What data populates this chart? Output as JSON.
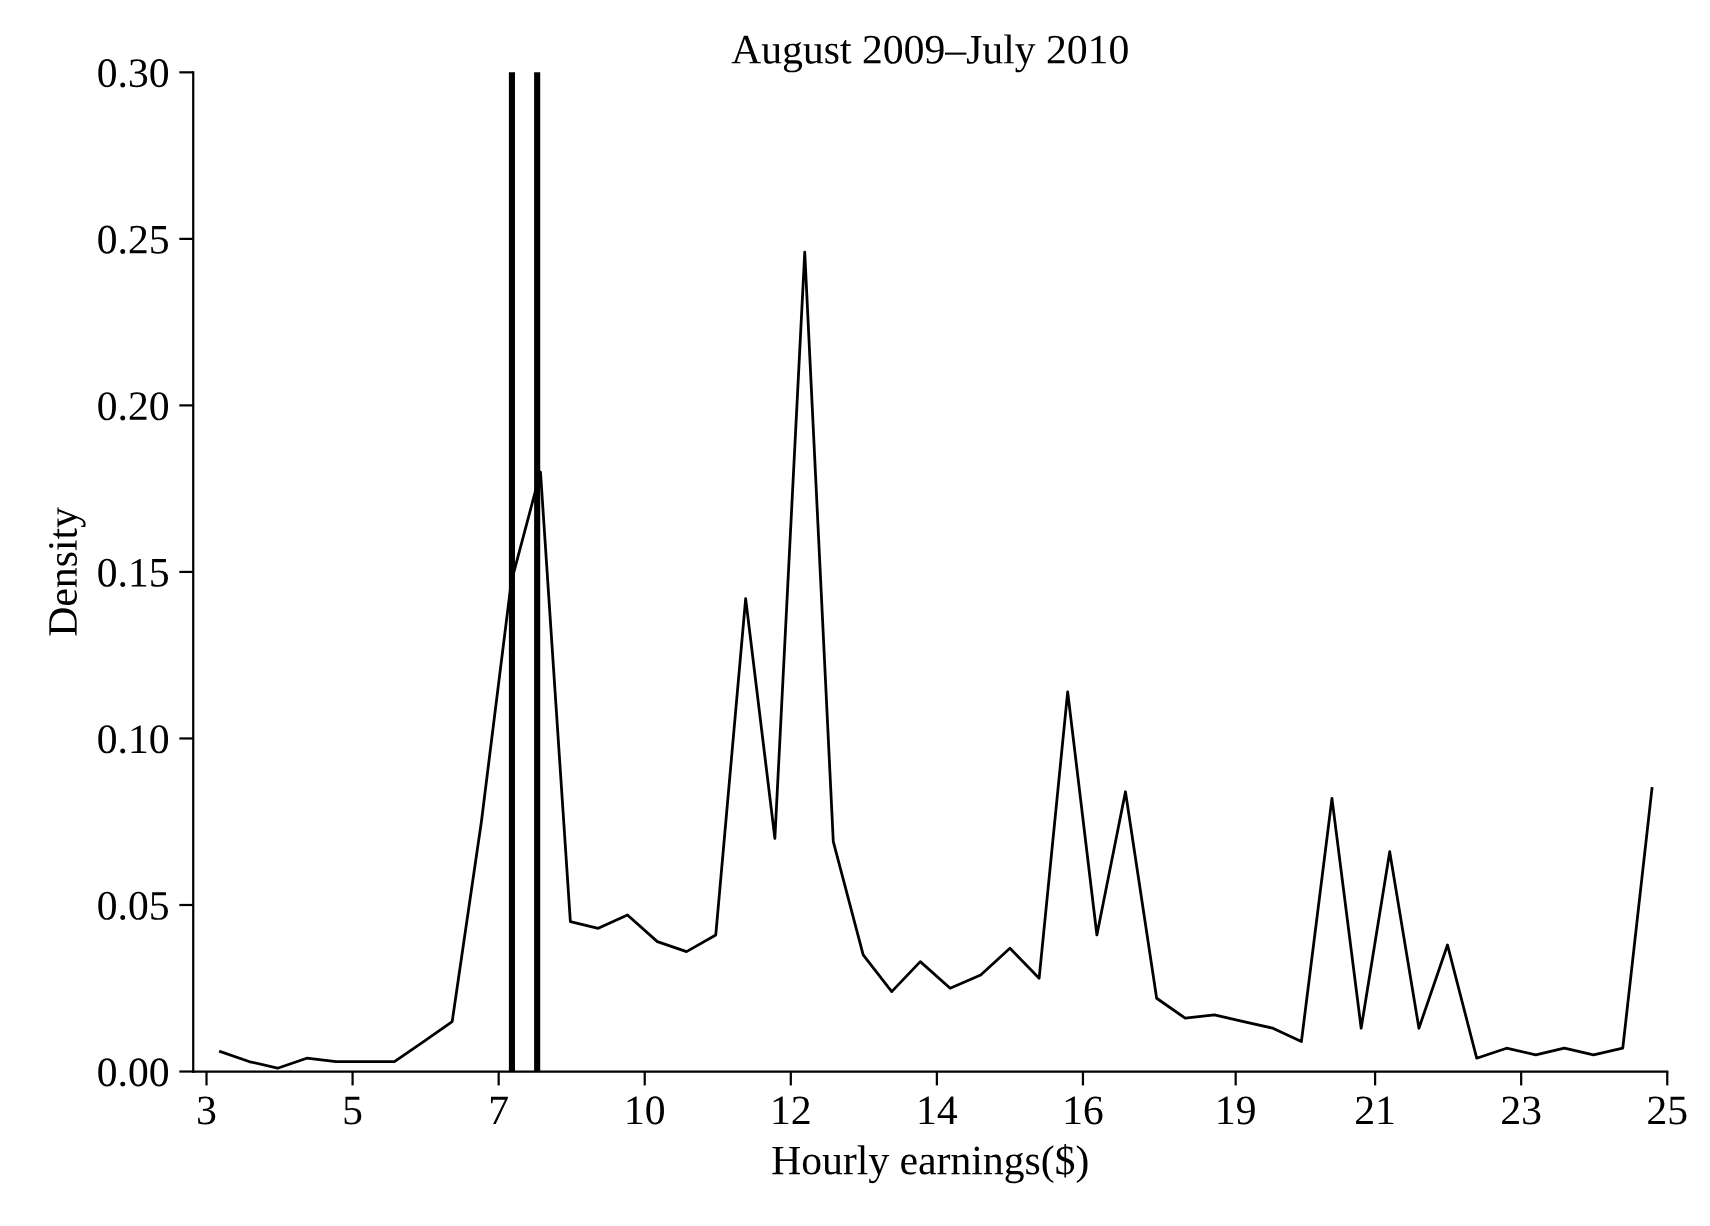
{
  "chart_data": {
    "type": "line",
    "title": "August 2009–July 2010",
    "xlabel": "Hourly earnings($)",
    "ylabel": "Density",
    "x": [
      3.21,
      3.64,
      4.07,
      4.51,
      4.95,
      5.39,
      5.83,
      6.27,
      6.7,
      7.14,
      7.59,
      8.03,
      8.48,
      8.9,
      9.34,
      9.79,
      10.23,
      10.67,
      11.12,
      11.56,
      12.01,
      12.44,
      12.89,
      13.32,
      13.75,
      14.2,
      14.66,
      15.1,
      15.54,
      15.97,
      16.41,
      16.84,
      17.31,
      17.74,
      18.18,
      18.62,
      19.06,
      19.49,
      19.95,
      20.39,
      20.82,
      21.26,
      21.69,
      22.13,
      22.58,
      23.02,
      23.45,
      23.89,
      24.33,
      24.77
    ],
    "series": [
      {
        "color": "#000000",
        "values": [
          0.006,
          0.003,
          0.001,
          0.004,
          0.003,
          0.003,
          0.003,
          0.009,
          0.015,
          0.075,
          0.147,
          0.18,
          0.045,
          0.043,
          0.047,
          0.039,
          0.036,
          0.041,
          0.142,
          0.07,
          0.246,
          0.069,
          0.035,
          0.024,
          0.033,
          0.025,
          0.029,
          0.037,
          0.028,
          0.114,
          0.041,
          0.084,
          0.022,
          0.016,
          0.017,
          0.015,
          0.013,
          0.009,
          0.082,
          0.013,
          0.066,
          0.013,
          0.038,
          0.004,
          0.007,
          0.005,
          0.007,
          0.005,
          0.007,
          0.085
        ]
      }
    ],
    "xlim": [
      2.8,
      25
    ],
    "xticks": [
      3,
      {
        "value": 5.2,
        "label": "5"
      },
      {
        "value": 7.4,
        "label": "7"
      },
      {
        "value": 9.6,
        "label": "10"
      },
      {
        "value": 11.8,
        "label": "12"
      },
      14,
      {
        "value": 16.2,
        "label": "16"
      },
      {
        "value": 18.5,
        "label": "19"
      },
      {
        "value": 20.6,
        "label": "21"
      },
      {
        "value": 22.8,
        "label": "23"
      },
      25
    ],
    "ylim": [
      0,
      0.3
    ],
    "yticks": [
      {
        "value": 0,
        "label": "0.00"
      },
      {
        "value": 0.05,
        "label": "0.05"
      },
      {
        "value": 0.1,
        "label": "0.10"
      },
      {
        "value": 0.15,
        "label": "0.15"
      },
      {
        "value": 0.2,
        "label": "0.20"
      },
      {
        "value": 0.25,
        "label": "0.25"
      },
      {
        "value": 0.3,
        "label": "0.30"
      }
    ],
    "ref_lines": [
      {
        "axis": "x",
        "value": 7.6,
        "color": "#000000"
      },
      {
        "axis": "x",
        "value": 7.98,
        "color": "#000000"
      }
    ],
    "grid": false,
    "legend": false,
    "marker": "none",
    "line_style": "solid"
  }
}
